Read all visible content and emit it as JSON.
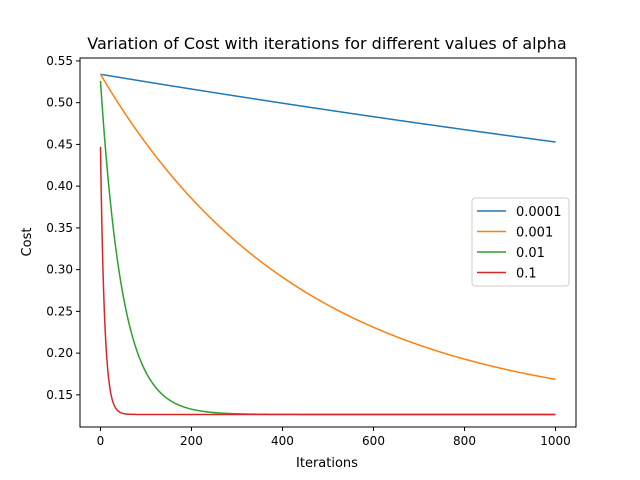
{
  "chart_data": {
    "type": "line",
    "title": "Variation of Cost with iterations for different values of alpha",
    "xlabel": "Iterations",
    "ylabel": "Cost",
    "xlim": [
      -45,
      1045
    ],
    "ylim": [
      0.1115,
      0.5535
    ],
    "xticks": [
      0,
      200,
      400,
      600,
      800,
      1000
    ],
    "yticks": [
      0.15,
      0.2,
      0.25,
      0.3,
      0.35,
      0.4,
      0.45,
      0.5,
      0.55
    ],
    "ytick_labels": [
      "0.15",
      "0.20",
      "0.25",
      "0.30",
      "0.35",
      "0.40",
      "0.45",
      "0.50",
      "0.55"
    ],
    "grid": false,
    "legend_position": "center-right",
    "series": [
      {
        "name": "0.0001",
        "color": "#1f77b4",
        "model": {
          "start": 0.534,
          "asymptote": 0.1265,
          "rate": 0.000222
        }
      },
      {
        "name": "0.001",
        "color": "#ff7f0e",
        "model": {
          "start": 0.534,
          "asymptote": 0.1265,
          "rate": 0.00227
        }
      },
      {
        "name": "0.01",
        "color": "#2ca02c",
        "model": {
          "start": 0.526,
          "asymptote": 0.1265,
          "rate": 0.0207
        }
      },
      {
        "name": "0.1",
        "color": "#d62728",
        "model": {
          "start": 0.447,
          "asymptote": 0.1265,
          "rate": 0.112
        }
      }
    ]
  }
}
